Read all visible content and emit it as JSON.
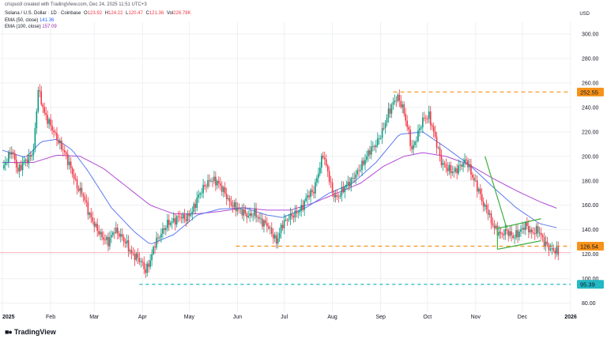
{
  "header": {
    "caption": "crispus9 created with TradingView.com, Dec 24, 2025 11:51 UTC+3",
    "symbol": "Solana / U.S. Dollar · 1D · Coinbase",
    "ohlc": [
      {
        "k": "O",
        "v": "123.92"
      },
      {
        "k": "H",
        "v": "124.22"
      },
      {
        "k": "L",
        "v": "120.47"
      },
      {
        "k": "C",
        "v": "121.36"
      },
      {
        "k": "Vol",
        "v": "226.78K"
      }
    ],
    "ema50_label": "EMA (50, close)",
    "ema50_value": "141.36",
    "ema100_label": "EMA (100, close)",
    "ema100_value": "157.09",
    "currency": "USD"
  },
  "branding": {
    "logo_text": "TradingView"
  },
  "colors": {
    "up": "#089981",
    "down": "#f23645",
    "ema50": "#5b7bf0",
    "ema100": "#b24ad6",
    "level": "#f7931a",
    "support": "#22b8c4",
    "pattern": "#3fae3f",
    "grid": "#eef0f3"
  },
  "chart_data": {
    "type": "candlestick",
    "ylim": [
      80,
      310
    ],
    "y_ticks": [
      80,
      100,
      120,
      140,
      160,
      180,
      200,
      220,
      240,
      260,
      280,
      300
    ],
    "x_ticks": [
      "2025",
      "Feb",
      "Mar",
      "Apr",
      "May",
      "Jun",
      "Jul",
      "Aug",
      "Sep",
      "Oct",
      "Nov",
      "Dec",
      "2026"
    ],
    "month_start_day": [
      0,
      31,
      59,
      90,
      120,
      151,
      181,
      212,
      243,
      273,
      304,
      334,
      365
    ],
    "last_day": 357,
    "close_anchors": [
      [
        0,
        190
      ],
      [
        6,
        205
      ],
      [
        10,
        188
      ],
      [
        14,
        196
      ],
      [
        17,
        198
      ],
      [
        20,
        205
      ],
      [
        23,
        255
      ],
      [
        27,
        235
      ],
      [
        31,
        225
      ],
      [
        36,
        212
      ],
      [
        40,
        203
      ],
      [
        44,
        190
      ],
      [
        48,
        175
      ],
      [
        52,
        168
      ],
      [
        56,
        152
      ],
      [
        60,
        142
      ],
      [
        64,
        134
      ],
      [
        68,
        130
      ],
      [
        72,
        140
      ],
      [
        76,
        135
      ],
      [
        80,
        128
      ],
      [
        83,
        120
      ],
      [
        87,
        117
      ],
      [
        90,
        112
      ],
      [
        92,
        106
      ],
      [
        95,
        115
      ],
      [
        98,
        129
      ],
      [
        102,
        137
      ],
      [
        106,
        145
      ],
      [
        110,
        147
      ],
      [
        114,
        151
      ],
      [
        118,
        149
      ],
      [
        122,
        155
      ],
      [
        126,
        168
      ],
      [
        130,
        176
      ],
      [
        134,
        181
      ],
      [
        138,
        179
      ],
      [
        142,
        172
      ],
      [
        146,
        162
      ],
      [
        150,
        158
      ],
      [
        154,
        155
      ],
      [
        158,
        151
      ],
      [
        162,
        154
      ],
      [
        166,
        147
      ],
      [
        170,
        144
      ],
      [
        174,
        135
      ],
      [
        176,
        130
      ],
      [
        180,
        145
      ],
      [
        184,
        150
      ],
      [
        188,
        153
      ],
      [
        192,
        157
      ],
      [
        196,
        168
      ],
      [
        200,
        172
      ],
      [
        204,
        192
      ],
      [
        206,
        202
      ],
      [
        210,
        182
      ],
      [
        212,
        170
      ],
      [
        215,
        166
      ],
      [
        220,
        175
      ],
      [
        224,
        180
      ],
      [
        228,
        187
      ],
      [
        232,
        195
      ],
      [
        236,
        205
      ],
      [
        240,
        210
      ],
      [
        244,
        220
      ],
      [
        248,
        236
      ],
      [
        252,
        246
      ],
      [
        254,
        248
      ],
      [
        257,
        240
      ],
      [
        260,
        225
      ],
      [
        263,
        205
      ],
      [
        266,
        215
      ],
      [
        270,
        230
      ],
      [
        274,
        233
      ],
      [
        278,
        215
      ],
      [
        282,
        195
      ],
      [
        286,
        190
      ],
      [
        290,
        187
      ],
      [
        294,
        192
      ],
      [
        298,
        197
      ],
      [
        302,
        183
      ],
      [
        306,
        172
      ],
      [
        309,
        160
      ],
      [
        312,
        155
      ],
      [
        314,
        146
      ],
      [
        317,
        140
      ],
      [
        320,
        136
      ],
      [
        324,
        139
      ],
      [
        328,
        134
      ],
      [
        332,
        138
      ],
      [
        336,
        144
      ],
      [
        340,
        137
      ],
      [
        344,
        140
      ],
      [
        348,
        130
      ],
      [
        352,
        124
      ],
      [
        355,
        123
      ],
      [
        357,
        121.36
      ]
    ],
    "ema50_anchors": [
      [
        0,
        205
      ],
      [
        15,
        199
      ],
      [
        25,
        212
      ],
      [
        35,
        214
      ],
      [
        45,
        205
      ],
      [
        55,
        188
      ],
      [
        70,
        158
      ],
      [
        85,
        138
      ],
      [
        95,
        128
      ],
      [
        110,
        136
      ],
      [
        125,
        152
      ],
      [
        140,
        157
      ],
      [
        155,
        158
      ],
      [
        170,
        152
      ],
      [
        180,
        150
      ],
      [
        195,
        158
      ],
      [
        210,
        170
      ],
      [
        225,
        178
      ],
      [
        240,
        195
      ],
      [
        255,
        218
      ],
      [
        270,
        220
      ],
      [
        285,
        207
      ],
      [
        300,
        193
      ],
      [
        315,
        175
      ],
      [
        330,
        158
      ],
      [
        345,
        145
      ],
      [
        357,
        141.36
      ]
    ],
    "ema100_anchors": [
      [
        0,
        195
      ],
      [
        20,
        195
      ],
      [
        35,
        201
      ],
      [
        50,
        200
      ],
      [
        65,
        190
      ],
      [
        80,
        175
      ],
      [
        95,
        160
      ],
      [
        110,
        153
      ],
      [
        125,
        153
      ],
      [
        140,
        155
      ],
      [
        155,
        158
      ],
      [
        170,
        156
      ],
      [
        185,
        156
      ],
      [
        200,
        162
      ],
      [
        215,
        170
      ],
      [
        230,
        178
      ],
      [
        245,
        192
      ],
      [
        258,
        200
      ],
      [
        270,
        203
      ],
      [
        285,
        200
      ],
      [
        300,
        193
      ],
      [
        315,
        182
      ],
      [
        330,
        172
      ],
      [
        345,
        163
      ],
      [
        357,
        157.09
      ]
    ],
    "price_labels": [
      {
        "name": "resistance",
        "value": 252.55,
        "text": "252.55"
      },
      {
        "name": "neckline",
        "value": 126.54,
        "text": "126.54"
      },
      {
        "name": "april-low",
        "value": 95.39,
        "text": "95.39"
      }
    ],
    "current_price": 121.36,
    "annotations": {
      "resistance_line": {
        "from_day": 251,
        "to_day": 365,
        "value": 252.55
      },
      "neckline_line": {
        "from_day": 150,
        "to_day": 365,
        "value": 126.54
      },
      "support_line": {
        "from_day": 88,
        "to_day": 365,
        "value": 95.39
      },
      "pennant_pole": [
        [
          310,
          200
        ],
        [
          324,
          141
        ]
      ],
      "pennant_upper": [
        [
          318,
          141
        ],
        [
          346,
          149
        ]
      ],
      "pennant_lower": [
        [
          318,
          124
        ],
        [
          346,
          131
        ]
      ],
      "pennant_top": [
        [
          324,
          141
        ],
        [
          346,
          149
        ]
      ]
    }
  }
}
